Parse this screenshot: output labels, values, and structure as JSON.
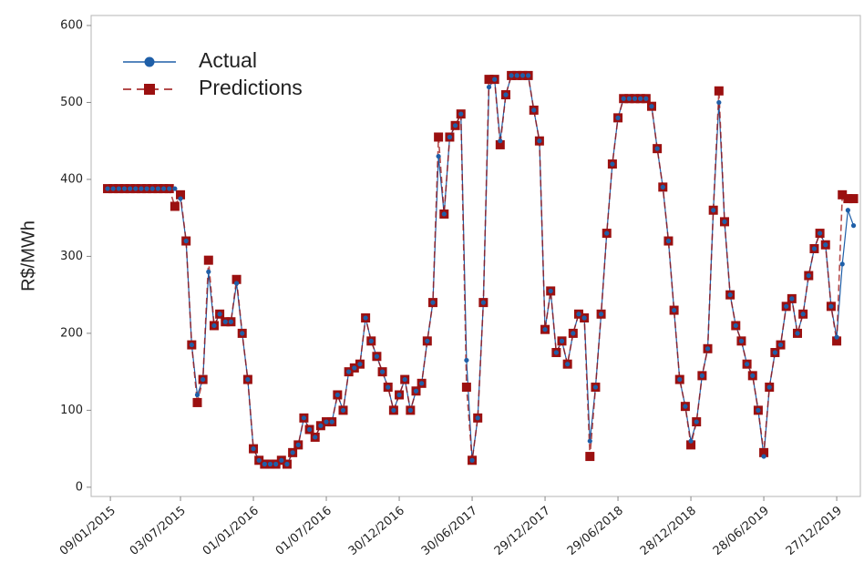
{
  "chart_data": {
    "type": "line",
    "ylabel": "R$/MWh",
    "x": [
      "2015-01-02",
      "2015-01-16",
      "2015-01-30",
      "2015-02-13",
      "2015-02-27",
      "2015-03-13",
      "2015-03-27",
      "2015-04-10",
      "2015-04-24",
      "2015-05-08",
      "2015-05-22",
      "2015-06-05",
      "2015-06-19",
      "2015-07-03",
      "2015-07-17",
      "2015-07-31",
      "2015-08-14",
      "2015-08-28",
      "2015-09-11",
      "2015-09-25",
      "2015-10-09",
      "2015-10-23",
      "2015-11-06",
      "2015-11-20",
      "2015-12-04",
      "2015-12-18",
      "2016-01-01",
      "2016-01-15",
      "2016-01-29",
      "2016-02-12",
      "2016-02-26",
      "2016-03-11",
      "2016-03-25",
      "2016-04-08",
      "2016-04-22",
      "2016-05-06",
      "2016-05-20",
      "2016-06-03",
      "2016-06-17",
      "2016-07-01",
      "2016-07-15",
      "2016-07-29",
      "2016-08-12",
      "2016-08-26",
      "2016-09-09",
      "2016-09-23",
      "2016-10-07",
      "2016-10-21",
      "2016-11-04",
      "2016-11-18",
      "2016-12-02",
      "2016-12-16",
      "2016-12-30",
      "2017-01-13",
      "2017-01-27",
      "2017-02-10",
      "2017-02-24",
      "2017-03-10",
      "2017-03-24",
      "2017-04-07",
      "2017-04-21",
      "2017-05-05",
      "2017-05-19",
      "2017-06-02",
      "2017-06-16",
      "2017-06-30",
      "2017-07-14",
      "2017-07-28",
      "2017-08-11",
      "2017-08-25",
      "2017-09-08",
      "2017-09-22",
      "2017-10-06",
      "2017-10-20",
      "2017-11-03",
      "2017-11-17",
      "2017-12-01",
      "2017-12-15",
      "2017-12-29",
      "2018-01-12",
      "2018-01-26",
      "2018-02-09",
      "2018-02-23",
      "2018-03-09",
      "2018-03-23",
      "2018-04-06",
      "2018-04-20",
      "2018-05-04",
      "2018-05-18",
      "2018-06-01",
      "2018-06-15",
      "2018-06-29",
      "2018-07-13",
      "2018-07-27",
      "2018-08-10",
      "2018-08-24",
      "2018-09-07",
      "2018-09-21",
      "2018-10-05",
      "2018-10-19",
      "2018-11-02",
      "2018-11-16",
      "2018-11-30",
      "2018-12-14",
      "2018-12-28",
      "2019-01-11",
      "2019-01-25",
      "2019-02-08",
      "2019-02-22",
      "2019-03-08",
      "2019-03-22",
      "2019-04-05",
      "2019-04-19",
      "2019-05-03",
      "2019-05-17",
      "2019-05-31",
      "2019-06-14",
      "2019-06-28",
      "2019-07-12",
      "2019-07-26",
      "2019-08-09",
      "2019-08-23",
      "2019-09-06",
      "2019-09-20",
      "2019-10-04",
      "2019-10-18",
      "2019-11-01",
      "2019-11-15",
      "2019-11-29",
      "2019-12-13",
      "2019-12-27",
      "2020-01-10",
      "2020-01-24",
      "2020-02-07"
    ],
    "series": [
      {
        "name": "Actual",
        "color": "#1f5fa8",
        "marker": "circle",
        "dash": false,
        "values": [
          388,
          388,
          388,
          388,
          388,
          388,
          388,
          388,
          388,
          388,
          388,
          388,
          388,
          375,
          320,
          185,
          120,
          140,
          280,
          210,
          225,
          215,
          215,
          265,
          200,
          140,
          50,
          35,
          30,
          30,
          30,
          35,
          30,
          45,
          55,
          90,
          75,
          65,
          80,
          85,
          85,
          120,
          100,
          150,
          155,
          160,
          220,
          190,
          170,
          150,
          130,
          100,
          120,
          140,
          100,
          125,
          135,
          190,
          240,
          430,
          355,
          455,
          470,
          485,
          165,
          35,
          90,
          240,
          520,
          530,
          450,
          510,
          535,
          535,
          535,
          535,
          490,
          450,
          205,
          255,
          175,
          190,
          160,
          200,
          225,
          220,
          60,
          130,
          225,
          330,
          420,
          480,
          505,
          505,
          505,
          505,
          505,
          495,
          440,
          390,
          320,
          230,
          140,
          105,
          60,
          85,
          145,
          180,
          360,
          500,
          345,
          250,
          210,
          190,
          160,
          145,
          100,
          40,
          130,
          175,
          185,
          235,
          245,
          200,
          225,
          275,
          310,
          330,
          315,
          235,
          195,
          290,
          360,
          340
        ]
      },
      {
        "name": "Predictions",
        "color": "#9b1010",
        "marker": "square",
        "dash": true,
        "values": [
          388,
          388,
          388,
          388,
          388,
          388,
          388,
          388,
          388,
          388,
          388,
          388,
          365,
          380,
          320,
          185,
          110,
          140,
          295,
          210,
          225,
          215,
          215,
          270,
          200,
          140,
          50,
          35,
          30,
          30,
          30,
          35,
          30,
          45,
          55,
          90,
          75,
          65,
          80,
          85,
          85,
          120,
          100,
          150,
          155,
          160,
          220,
          190,
          170,
          150,
          130,
          100,
          120,
          140,
          100,
          125,
          135,
          190,
          240,
          455,
          355,
          455,
          470,
          485,
          130,
          35,
          90,
          240,
          530,
          530,
          445,
          510,
          535,
          535,
          535,
          535,
          490,
          450,
          205,
          255,
          175,
          190,
          160,
          200,
          225,
          220,
          40,
          130,
          225,
          330,
          420,
          480,
          505,
          505,
          505,
          505,
          505,
          495,
          440,
          390,
          320,
          230,
          140,
          105,
          55,
          85,
          145,
          180,
          360,
          515,
          345,
          250,
          210,
          190,
          160,
          145,
          100,
          45,
          130,
          175,
          185,
          235,
          245,
          200,
          225,
          275,
          310,
          330,
          315,
          235,
          190,
          380,
          375,
          375
        ]
      }
    ],
    "xlim": [
      "2014-11-22",
      "2020-02-24"
    ],
    "xticks": [
      {
        "value": "2015-01-09",
        "label": "09/01/2015"
      },
      {
        "value": "2015-07-03",
        "label": "03/07/2015"
      },
      {
        "value": "2016-01-01",
        "label": "01/01/2016"
      },
      {
        "value": "2016-07-01",
        "label": "01/07/2016"
      },
      {
        "value": "2016-12-30",
        "label": "30/12/2016"
      },
      {
        "value": "2017-06-30",
        "label": "30/06/2017"
      },
      {
        "value": "2017-12-29",
        "label": "29/12/2017"
      },
      {
        "value": "2018-06-29",
        "label": "29/06/2018"
      },
      {
        "value": "2018-12-28",
        "label": "28/12/2018"
      },
      {
        "value": "2019-06-28",
        "label": "28/06/2019"
      },
      {
        "value": "2019-12-27",
        "label": "27/12/2019"
      }
    ],
    "ylim": [
      -12,
      613
    ],
    "yticks": [
      0,
      100,
      200,
      300,
      400,
      500,
      600
    ],
    "grid": false,
    "legend": "upper left"
  }
}
